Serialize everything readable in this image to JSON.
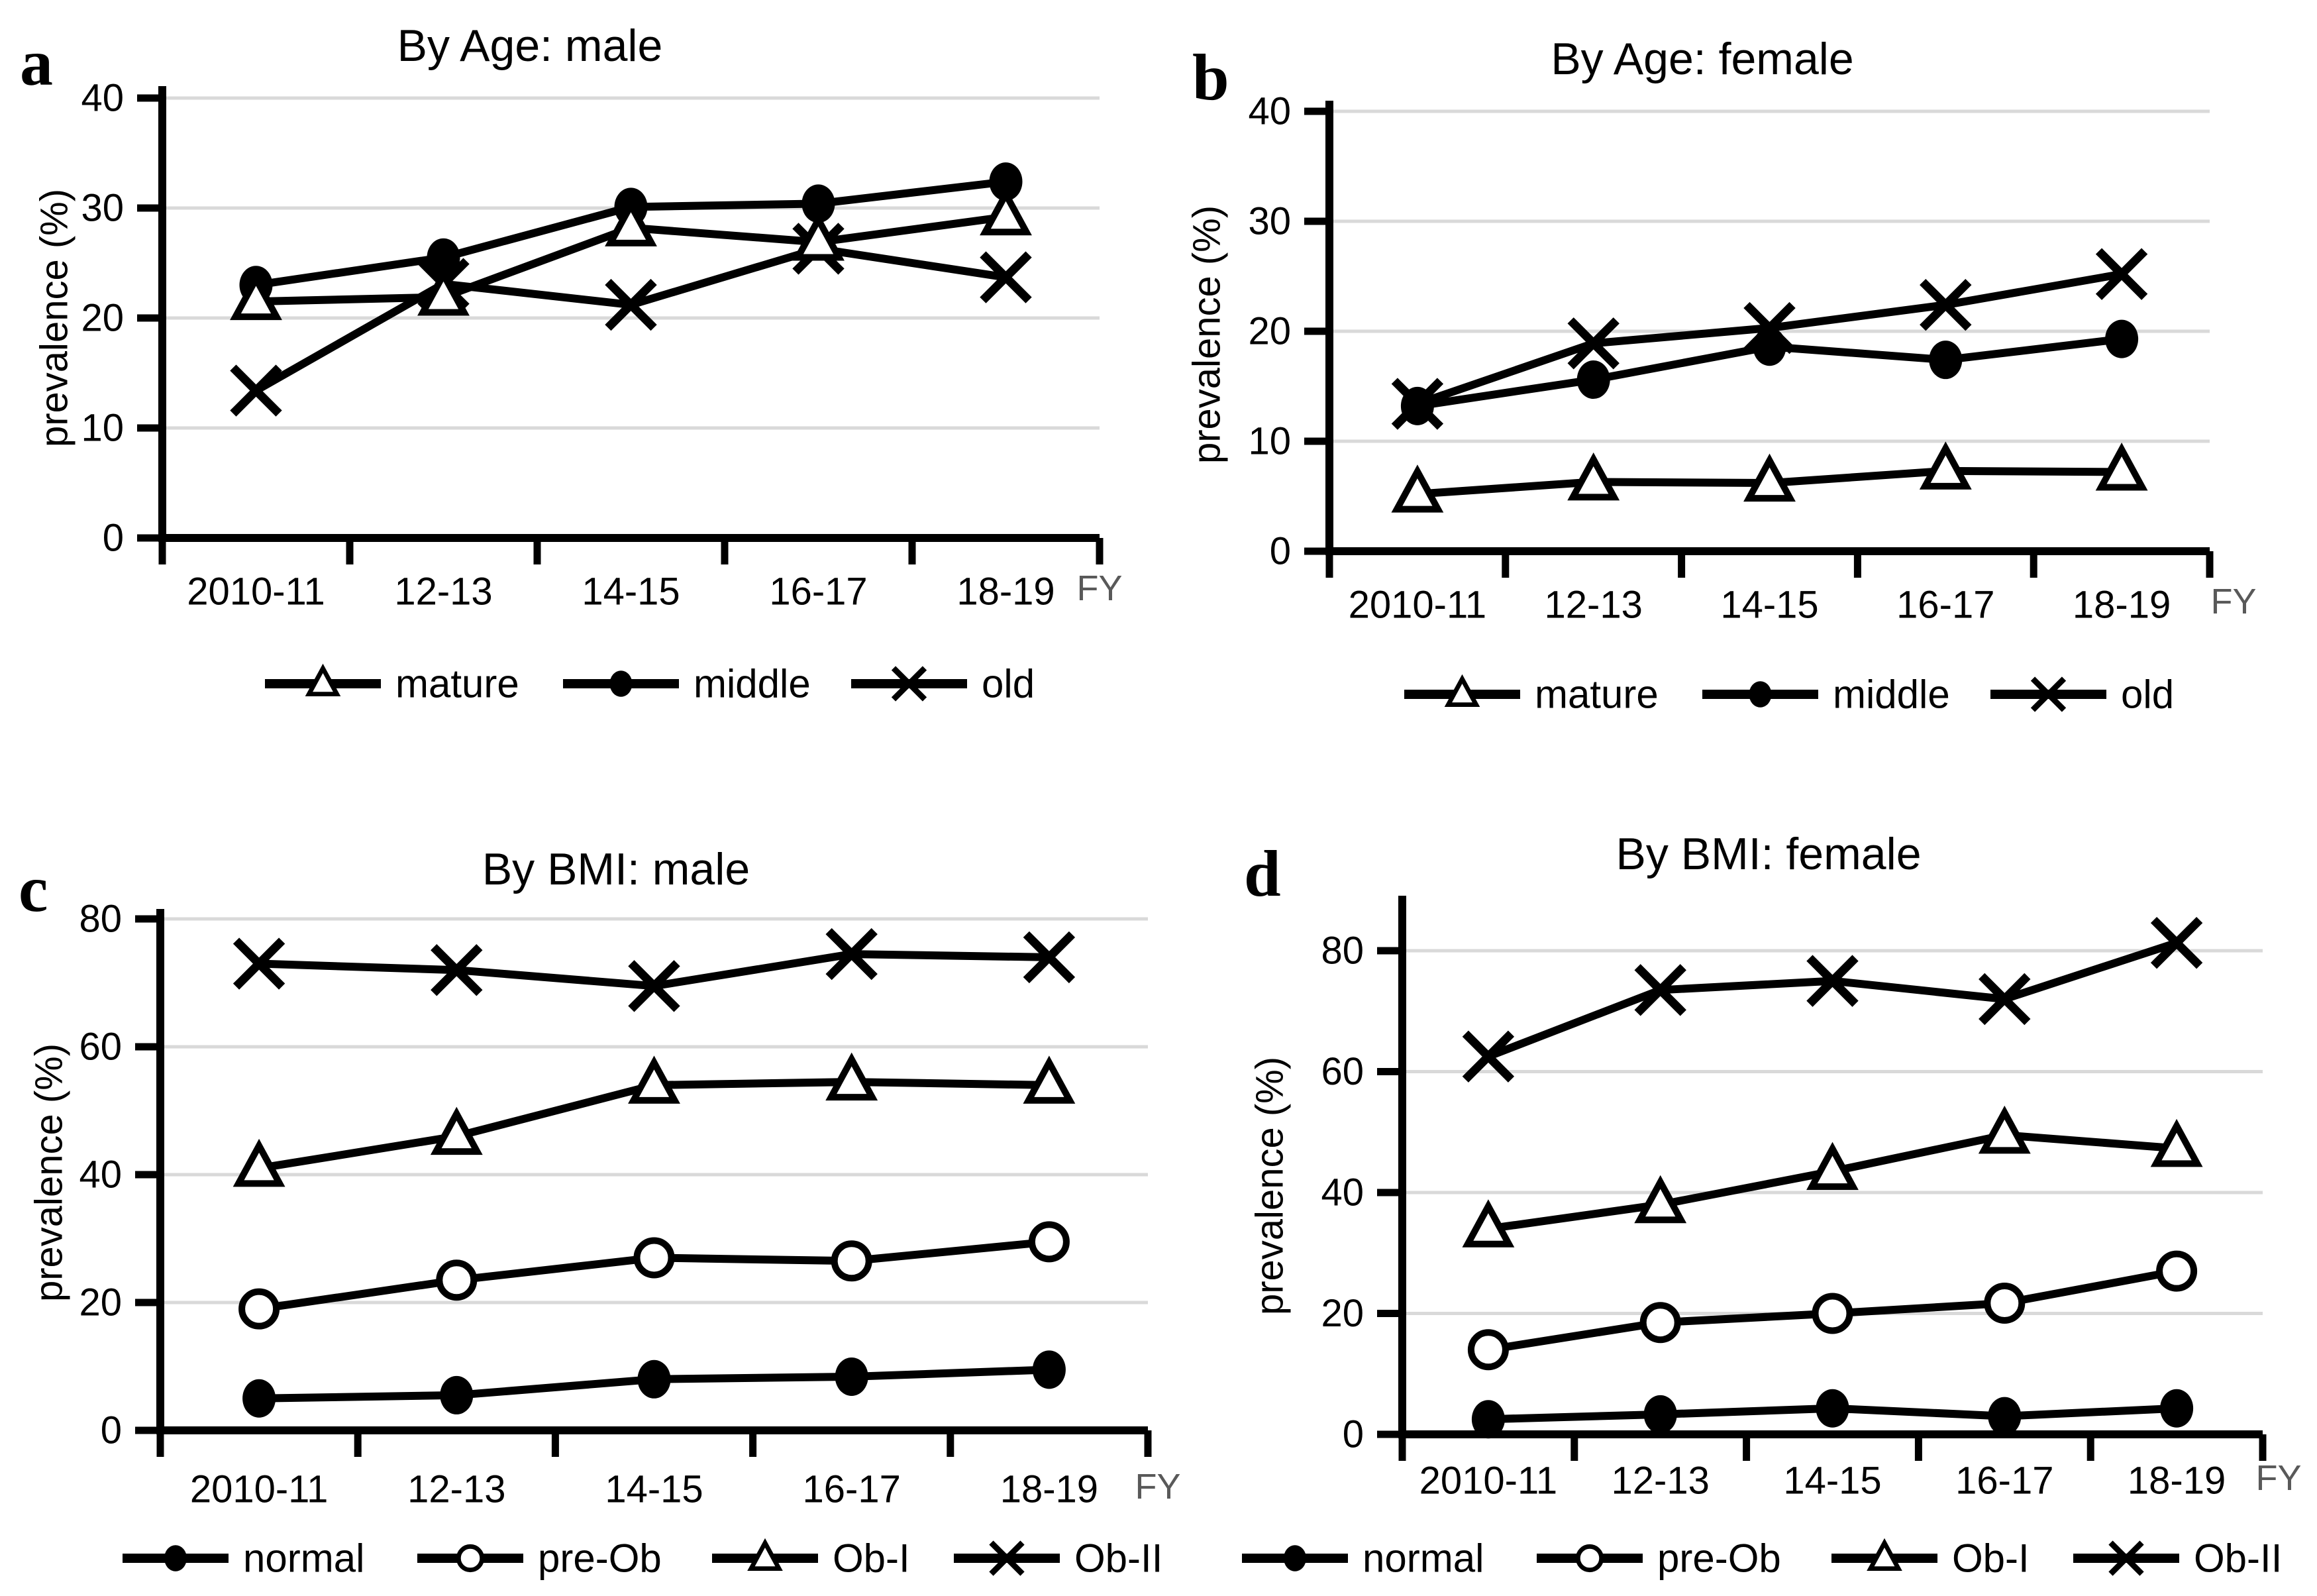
{
  "figure": {
    "background": "#ffffff",
    "line_color": "#000000",
    "grid_color": "#d9d9d9",
    "fy_label_color": "#595959",
    "xlabel": "FY",
    "ylabel": "prevalence (%)"
  },
  "chart_data": [
    {
      "id": "a",
      "type": "line",
      "panel_letter": "a",
      "title": "By Age: male",
      "ylabel": "prevalence (%)",
      "xlabel": "FY",
      "categories": [
        "2010-11",
        "12-13",
        "14-15",
        "16-17",
        "18-19"
      ],
      "ylim": [
        0,
        40
      ],
      "yticks": [
        0,
        10,
        20,
        30,
        40
      ],
      "grid": true,
      "legend_position": "bottom",
      "series": [
        {
          "name": "mature",
          "marker": "triangle-open",
          "values": [
            21.5,
            21.9,
            28.2,
            26.9,
            29.2
          ]
        },
        {
          "name": "middle",
          "marker": "circle-filled",
          "values": [
            23.0,
            25.5,
            30.1,
            30.4,
            32.4
          ]
        },
        {
          "name": "old",
          "marker": "x",
          "values": [
            13.4,
            23.1,
            21.2,
            26.3,
            23.7
          ]
        }
      ]
    },
    {
      "id": "b",
      "type": "line",
      "panel_letter": "b",
      "title": "By Age: female",
      "ylabel": "prevalence (%)",
      "xlabel": "FY",
      "categories": [
        "2010-11",
        "12-13",
        "14-15",
        "16-17",
        "18-19"
      ],
      "ylim": [
        0,
        40
      ],
      "yticks": [
        0,
        10,
        20,
        30,
        40
      ],
      "grid": true,
      "legend_position": "bottom",
      "series": [
        {
          "name": "mature",
          "marker": "triangle-open",
          "values": [
            5.2,
            6.3,
            6.2,
            7.3,
            7.2
          ]
        },
        {
          "name": "middle",
          "marker": "circle-filled",
          "values": [
            13.2,
            15.6,
            18.6,
            17.4,
            19.3
          ]
        },
        {
          "name": "old",
          "marker": "x",
          "values": [
            13.4,
            18.9,
            20.3,
            22.4,
            25.2
          ]
        }
      ]
    },
    {
      "id": "c",
      "type": "line",
      "panel_letter": "c",
      "title": "By BMI: male",
      "ylabel": "prevalence (%)",
      "xlabel": "FY",
      "categories": [
        "2010-11",
        "12-13",
        "14-15",
        "16-17",
        "18-19"
      ],
      "ylim": [
        0,
        80
      ],
      "yticks": [
        0,
        20,
        40,
        60,
        80
      ],
      "grid": true,
      "legend_position": "bottom",
      "series": [
        {
          "name": "normal",
          "marker": "circle-filled",
          "values": [
            5.0,
            5.5,
            8.0,
            8.4,
            9.5
          ]
        },
        {
          "name": "pre-Ob",
          "marker": "circle-open",
          "values": [
            19.0,
            23.5,
            27.0,
            26.5,
            29.5
          ]
        },
        {
          "name": "Ob-I",
          "marker": "triangle-open",
          "values": [
            41.0,
            46.0,
            54.0,
            54.5,
            54.0
          ]
        },
        {
          "name": "Ob-II",
          "marker": "x",
          "values": [
            73.0,
            72.0,
            69.5,
            74.5,
            74.0
          ]
        }
      ]
    },
    {
      "id": "d",
      "type": "line",
      "panel_letter": "d",
      "title": "By BMI: female",
      "ylabel": "prevalence (%)",
      "xlabel": "FY",
      "categories": [
        "2010-11",
        "12-13",
        "14-15",
        "16-17",
        "18-19"
      ],
      "ylim": [
        0,
        80
      ],
      "yticks": [
        0,
        20,
        40,
        60,
        80
      ],
      "grid": true,
      "legend_position": "bottom",
      "series": [
        {
          "name": "normal",
          "marker": "circle-filled",
          "values": [
            2.5,
            3.3,
            4.3,
            3.0,
            4.3
          ]
        },
        {
          "name": "pre-Ob",
          "marker": "circle-open",
          "values": [
            14.0,
            18.5,
            20.0,
            21.7,
            27.0
          ]
        },
        {
          "name": "Ob-I",
          "marker": "triangle-open",
          "values": [
            34.0,
            38.0,
            43.5,
            49.5,
            47.3
          ]
        },
        {
          "name": "Ob-II",
          "marker": "x",
          "values": [
            62.5,
            73.5,
            75.0,
            72.0,
            81.3
          ]
        }
      ]
    }
  ]
}
